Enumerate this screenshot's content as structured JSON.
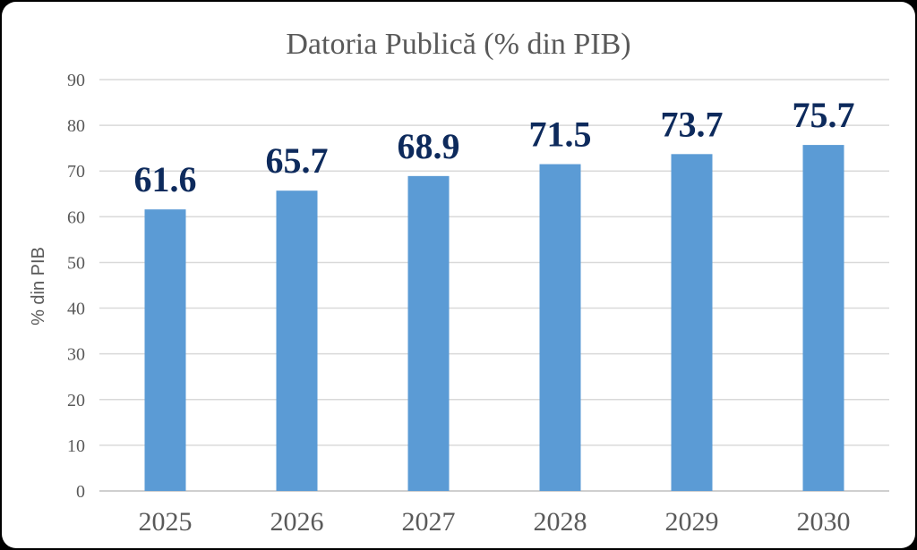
{
  "chart_data": {
    "type": "bar",
    "title": "Datoria Publică (% din PIB)",
    "xlabel": "",
    "ylabel": "% din PIB",
    "categories": [
      "2025",
      "2026",
      "2027",
      "2028",
      "2029",
      "2030"
    ],
    "values": [
      61.6,
      65.7,
      68.9,
      71.5,
      73.7,
      75.7
    ],
    "data_labels": [
      "61.6",
      "65.7",
      "68.9",
      "71.5",
      "73.7",
      "75.7"
    ],
    "ylim": [
      0,
      90
    ],
    "y_ticks": [
      0,
      10,
      20,
      30,
      40,
      50,
      60,
      70,
      80,
      90
    ],
    "grid": true,
    "legend": "none",
    "colors": {
      "bar": "#5b9bd5",
      "data_label": "#0d2a5c",
      "text": "#595959",
      "grid": "#d9d9d9"
    }
  }
}
